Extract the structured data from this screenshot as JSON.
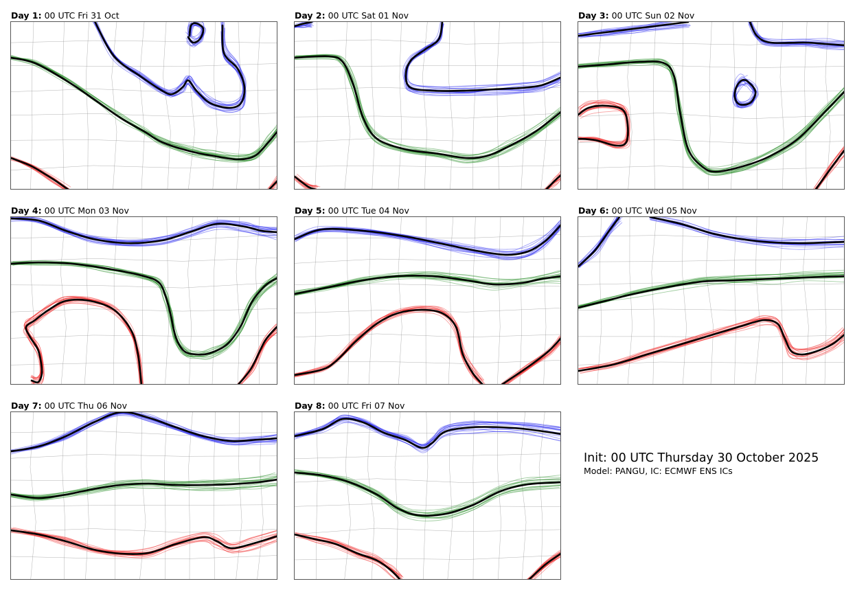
{
  "panels": [
    {
      "label": "Day 1:",
      "time": "00 UTC Fri 31 Oct"
    },
    {
      "label": "Day 2:",
      "time": "00 UTC Sat 01 Nov"
    },
    {
      "label": "Day 3:",
      "time": "00 UTC Sun 02 Nov"
    },
    {
      "label": "Day 4:",
      "time": "00 UTC Mon 03 Nov"
    },
    {
      "label": "Day 5:",
      "time": "00 UTC Tue 04 Nov"
    },
    {
      "label": "Day 6:",
      "time": "00 UTC Wed 05 Nov"
    },
    {
      "label": "Day 7:",
      "time": "00 UTC Thu 06 Nov"
    },
    {
      "label": "Day 8:",
      "time": "00 UTC Fri 07 Nov"
    }
  ],
  "info": {
    "init": "Init: 00 UTC Thursday 30 October 2025",
    "model": "Model: PANGU, IC: ECMWF ENS ICs"
  },
  "colors": {
    "blue": "#2222ee",
    "green": "#228b22",
    "red": "#ee2020",
    "mean": "#000000",
    "border": "#8a8a8a"
  }
}
